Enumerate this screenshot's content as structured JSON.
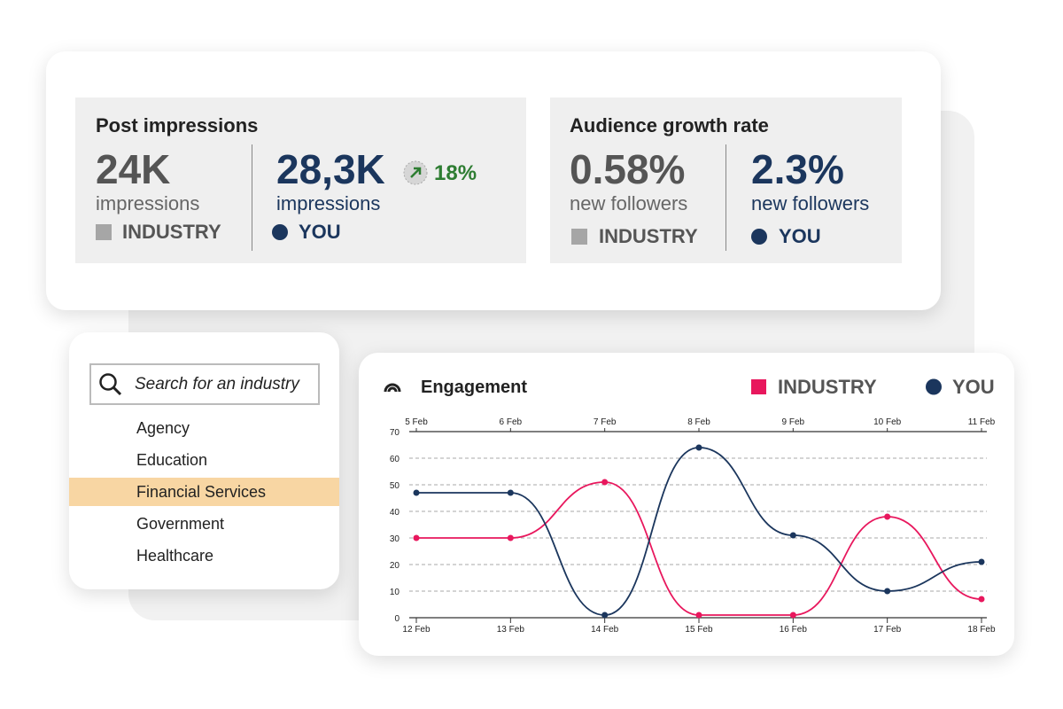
{
  "metrics": [
    {
      "title": "Post impressions",
      "industry": {
        "value": "24K",
        "unit": "impressions",
        "label": "INDUSTRY"
      },
      "you": {
        "value": "28,3K",
        "unit": "impressions",
        "label": "YOU",
        "change": "18%"
      }
    },
    {
      "title": "Audience growth rate",
      "industry": {
        "value": "0.58%",
        "unit": "new followers",
        "label": "INDUSTRY"
      },
      "you": {
        "value": "2.3%",
        "unit": "new followers",
        "label": "YOU"
      }
    }
  ],
  "search": {
    "placeholder": "Search for an industry",
    "items": [
      "Agency",
      "Education",
      "Financial Services",
      "Government",
      "Healthcare"
    ],
    "selected": 2
  },
  "chart_data": {
    "type": "line",
    "title": "Engagement",
    "categories": [
      "12 Feb",
      "13 Feb",
      "14 Feb",
      "15 Feb",
      "16 Feb",
      "17 Feb",
      "18 Feb"
    ],
    "top_categories": [
      "5 Feb",
      "6 Feb",
      "7 Feb",
      "8 Feb",
      "9 Feb",
      "10 Feb",
      "11 Feb"
    ],
    "ylim": [
      0,
      70
    ],
    "yticks": [
      0,
      10,
      20,
      30,
      40,
      50,
      60,
      70
    ],
    "grid": true,
    "series": [
      {
        "name": "INDUSTRY",
        "color": "#e8175d",
        "marker": "square",
        "values": [
          30,
          30,
          51,
          1,
          1,
          38,
          7
        ]
      },
      {
        "name": "YOU",
        "color": "#1b365d",
        "marker": "circle",
        "values": [
          47,
          47,
          1,
          64,
          31,
          10,
          21
        ]
      }
    ]
  }
}
